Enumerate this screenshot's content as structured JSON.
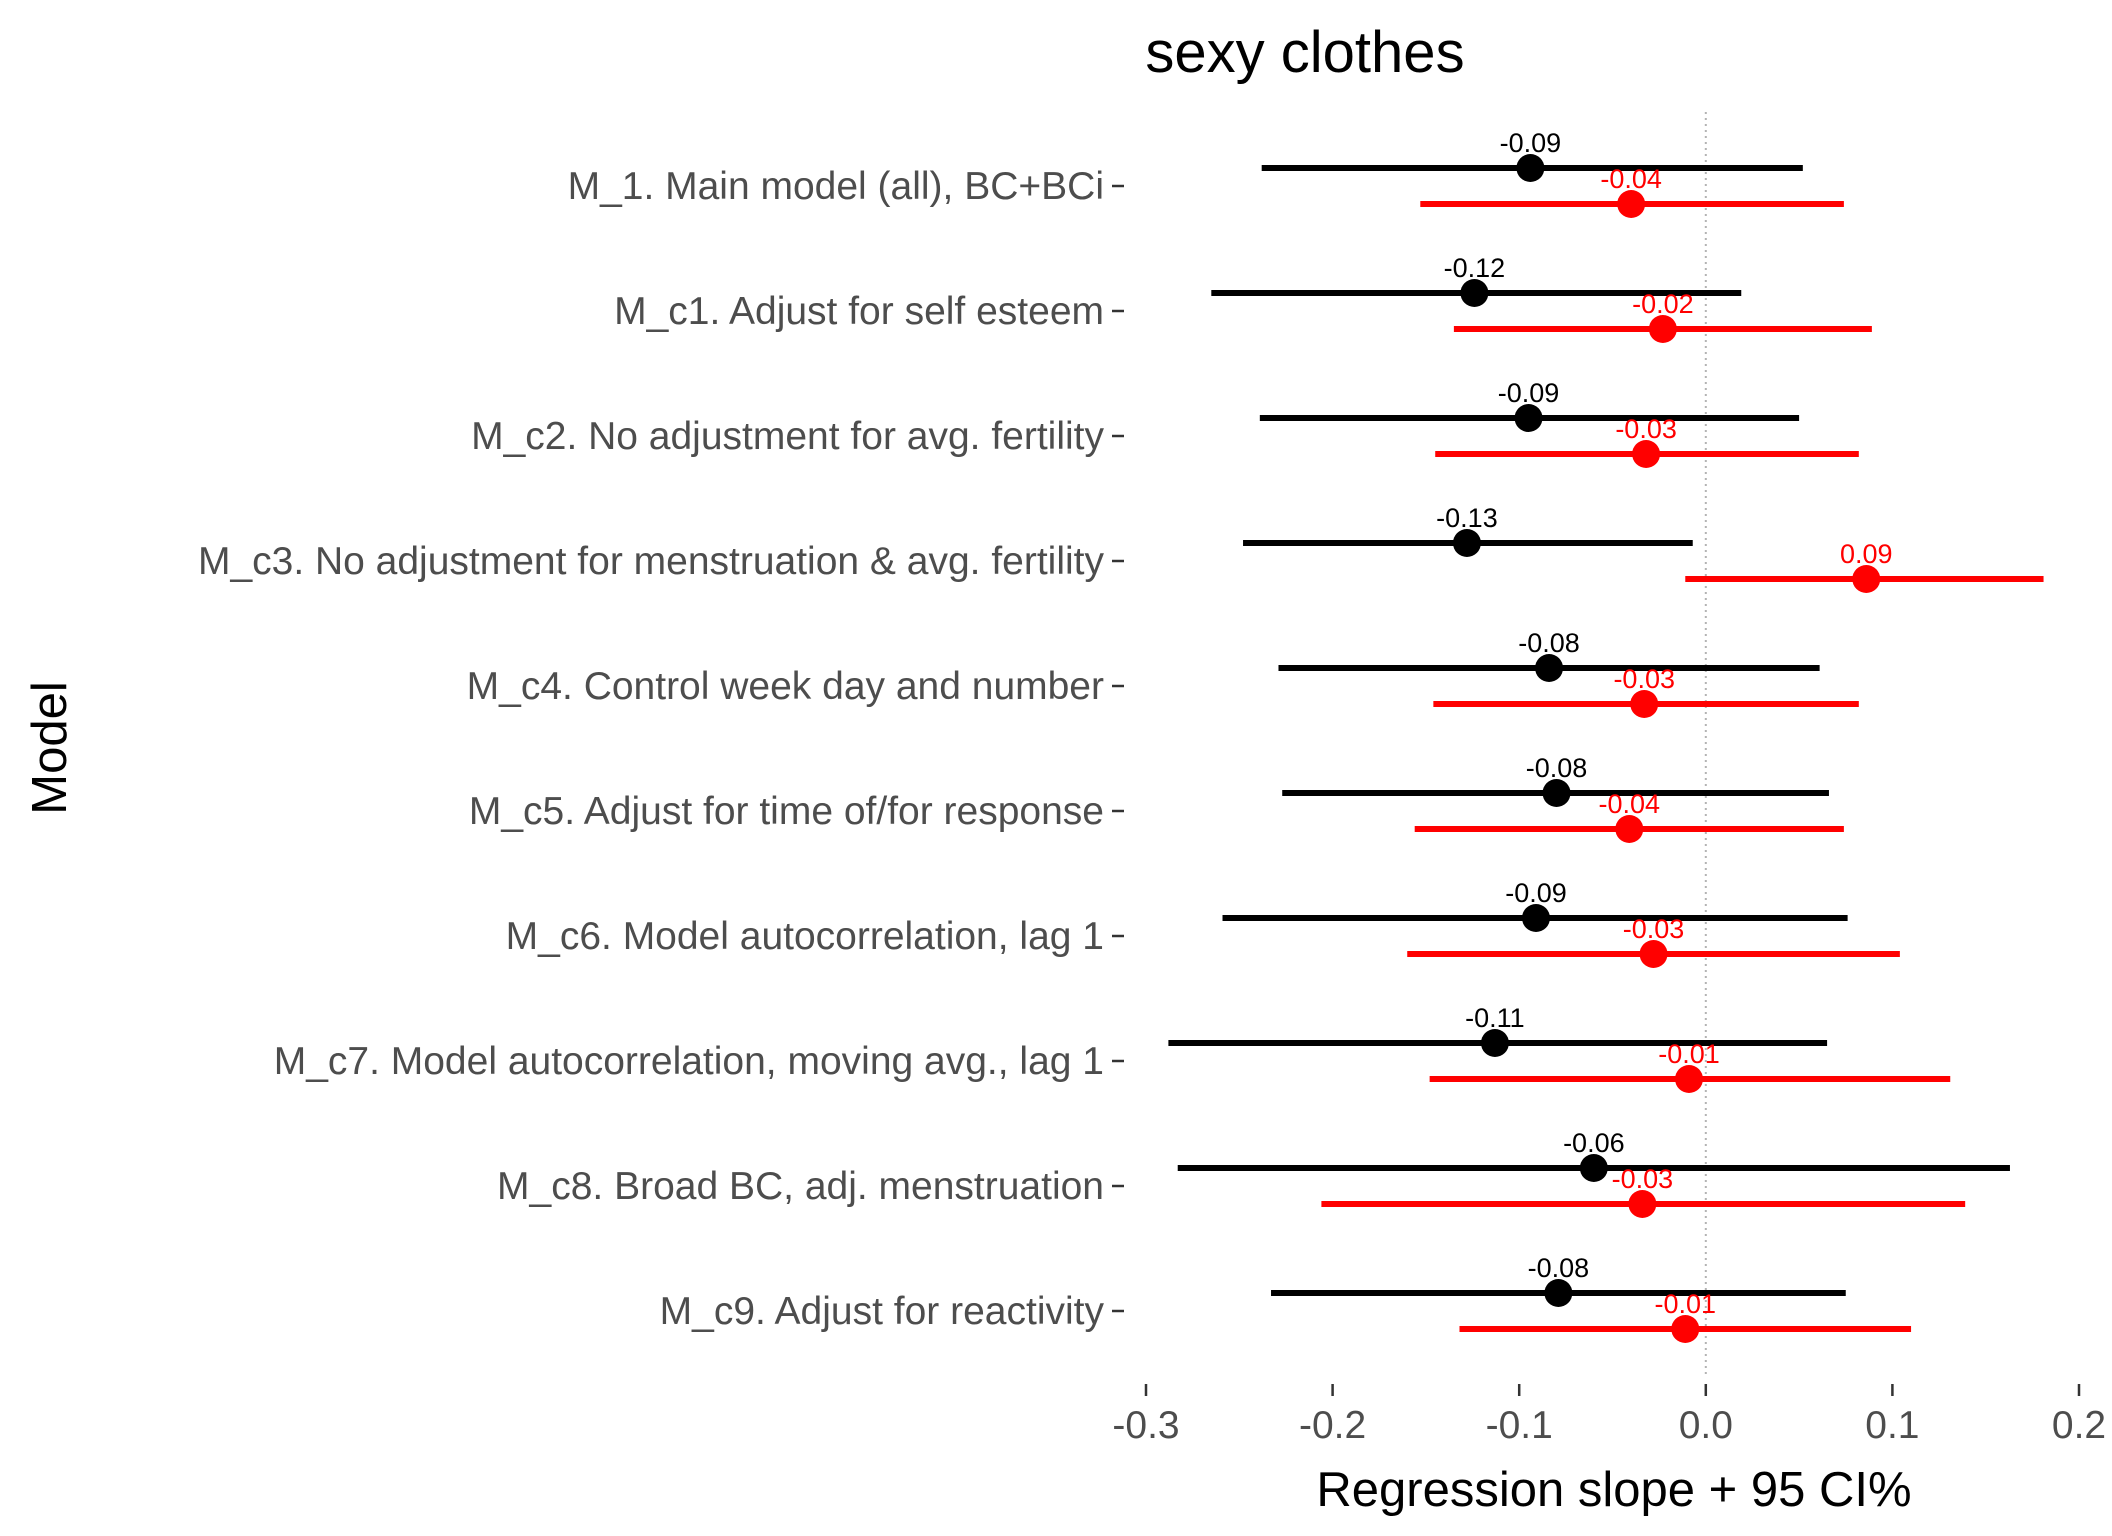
{
  "chart_data": {
    "type": "forest",
    "title": "sexy clothes",
    "xlabel": "Regression slope + 95 CI%",
    "ylabel": "Model",
    "xlim": [
      -0.3,
      0.2
    ],
    "xticks": [
      -0.3,
      -0.2,
      -0.1,
      0.0,
      0.1,
      0.2
    ],
    "xtick_labels": [
      "-0.3",
      "-0.2",
      "-0.1",
      "0.0",
      "0.1",
      "0.2"
    ],
    "reference_line": 0,
    "grid": false,
    "categories": [
      "M_1. Main model (all), BC+BCi",
      "M_c1. Adjust for self esteem",
      "M_c2. No adjustment for avg. fertility",
      "M_c3. No adjustment for menstruation & avg. fertility",
      "M_c4. Control week day and number",
      "M_c5. Adjust for time of/for response",
      "M_c6. Model autocorrelation, lag 1",
      "M_c7. Model autocorrelation, moving avg., lag 1",
      "M_c8. Broad BC, adj. menstruation",
      "M_c9. Adjust for reactivity"
    ],
    "series": [
      {
        "color": "#000000",
        "estimates": [
          -0.094,
          -0.124,
          -0.095,
          -0.128,
          -0.084,
          -0.08,
          -0.091,
          -0.113,
          -0.06,
          -0.079
        ],
        "ci_low": [
          -0.238,
          -0.265,
          -0.239,
          -0.248,
          -0.229,
          -0.227,
          -0.259,
          -0.288,
          -0.283,
          -0.233
        ],
        "ci_high": [
          0.052,
          0.019,
          0.05,
          -0.007,
          0.061,
          0.066,
          0.076,
          0.065,
          0.163,
          0.075
        ],
        "labels": [
          "-0.09",
          "-0.12",
          "-0.09",
          "-0.13",
          "-0.08",
          "-0.08",
          "-0.09",
          "-0.11",
          "-0.06",
          "-0.08"
        ]
      },
      {
        "color": "#ff0000",
        "estimates": [
          -0.04,
          -0.023,
          -0.032,
          0.086,
          -0.033,
          -0.041,
          -0.028,
          -0.009,
          -0.034,
          -0.011
        ],
        "ci_low": [
          -0.153,
          -0.135,
          -0.145,
          -0.011,
          -0.146,
          -0.156,
          -0.16,
          -0.148,
          -0.206,
          -0.132
        ],
        "ci_high": [
          0.074,
          0.089,
          0.082,
          0.181,
          0.082,
          0.074,
          0.104,
          0.131,
          0.139,
          0.11
        ],
        "labels": [
          "-0.04",
          "-0.02",
          "-0.03",
          "0.09",
          "-0.03",
          "-0.04",
          "-0.03",
          "-0.01",
          "-0.03",
          "-0.01"
        ]
      }
    ]
  }
}
